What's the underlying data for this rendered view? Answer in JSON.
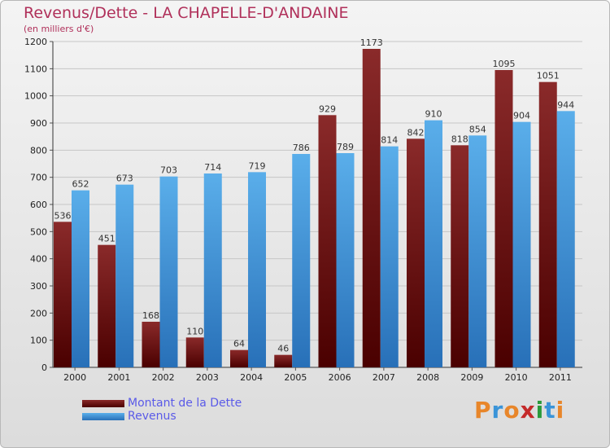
{
  "header": {
    "title": "Revenus/Dette - LA CHAPELLE-D'ANDAINE",
    "subtitle": "(en milliers d'€)"
  },
  "legend": {
    "dette_label": "Montant de la Dette",
    "revenus_label": "Revenus"
  },
  "brand": {
    "text": "Proxiti"
  },
  "colors": {
    "dette": "#7a1515",
    "revenus": "#3a94d8",
    "title": "#b0305a"
  },
  "chart_data": {
    "type": "bar",
    "title": "Revenus/Dette - LA CHAPELLE-D'ANDAINE",
    "ylabel": "(en milliers d'€)",
    "xlabel": "",
    "categories": [
      "2000",
      "2001",
      "2002",
      "2003",
      "2004",
      "2005",
      "2006",
      "2007",
      "2008",
      "2009",
      "2010",
      "2011"
    ],
    "series": [
      {
        "name": "Montant de la Dette",
        "values": [
          536,
          451,
          168,
          110,
          64,
          46,
          929,
          1173,
          842,
          818,
          1095,
          1051
        ]
      },
      {
        "name": "Revenus",
        "values": [
          652,
          673,
          703,
          714,
          719,
          786,
          789,
          814,
          910,
          854,
          904,
          944
        ]
      }
    ],
    "ylim": [
      0,
      1200
    ],
    "yticks": [
      0,
      100,
      200,
      300,
      400,
      500,
      600,
      700,
      800,
      900,
      1000,
      1100,
      1200
    ],
    "grid": true,
    "legend_position": "bottom-left"
  }
}
